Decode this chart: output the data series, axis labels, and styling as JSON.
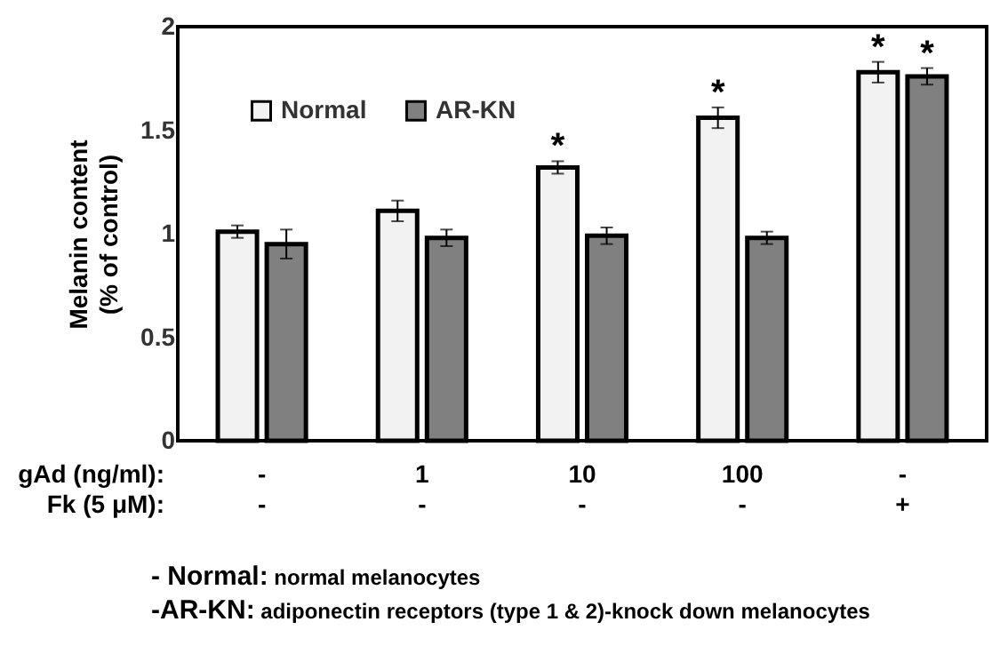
{
  "chart_data": {
    "type": "bar",
    "ylabel": "Melanin content\n(% of control)",
    "xlabel": "gAd (ng/ml):\nFk (5 μM):",
    "categories": [
      "-\n-",
      "1\n-",
      "10\n-",
      "100\n-",
      "-\n+"
    ],
    "series": [
      {
        "name": "Normal",
        "color": "#f2f2f2",
        "values": [
          1.01,
          1.11,
          1.32,
          1.56,
          1.78
        ],
        "errors": [
          0.03,
          0.05,
          0.03,
          0.05,
          0.05
        ],
        "value_labels": [
          null,
          null,
          "*",
          "*",
          "*"
        ]
      },
      {
        "name": "AR-KN",
        "color": "#808080",
        "values": [
          0.95,
          0.98,
          0.99,
          0.98,
          1.76
        ],
        "errors": [
          0.07,
          0.04,
          0.04,
          0.03,
          0.04
        ],
        "value_labels": [
          null,
          null,
          null,
          null,
          "*"
        ]
      }
    ],
    "ylim": [
      0,
      2
    ],
    "yticks": [
      0,
      0.5,
      1,
      1.5,
      2
    ],
    "grid": false,
    "legend": "top left",
    "annotations": [
      "- Normal: normal melanocytes",
      "-AR-KN: adiponectin receptors (type 1 & 2)-knock down  melanocytes"
    ]
  }
}
